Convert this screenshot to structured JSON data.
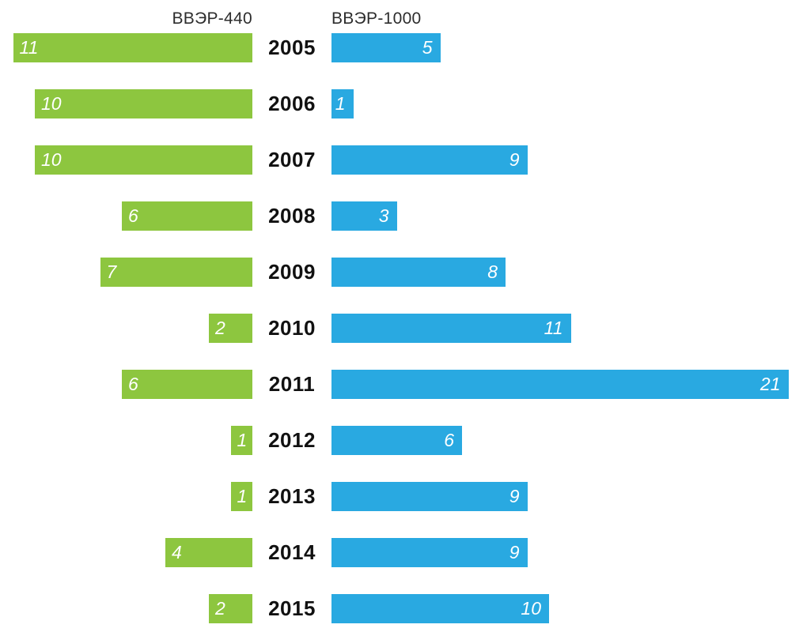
{
  "chart_data": {
    "type": "bar",
    "variant": "diverging-tornado-horizontal",
    "title": "",
    "categories": [
      "2005",
      "2006",
      "2007",
      "2008",
      "2009",
      "2010",
      "2011",
      "2012",
      "2013",
      "2014",
      "2015"
    ],
    "series": [
      {
        "name": "ВВЭР-440",
        "side": "left",
        "color": "#8dc63f",
        "values": [
          11,
          10,
          10,
          6,
          7,
          2,
          6,
          1,
          1,
          4,
          2
        ]
      },
      {
        "name": "ВВЭР-1000",
        "side": "right",
        "color": "#29a9e1",
        "values": [
          5,
          1,
          9,
          3,
          8,
          11,
          21,
          6,
          9,
          9,
          10
        ]
      }
    ],
    "xlim": [
      0,
      21
    ],
    "value_labels": "inside-white-italic",
    "legend_position": "top",
    "grid": false,
    "axes_visible": false,
    "background": "#ffffff"
  }
}
